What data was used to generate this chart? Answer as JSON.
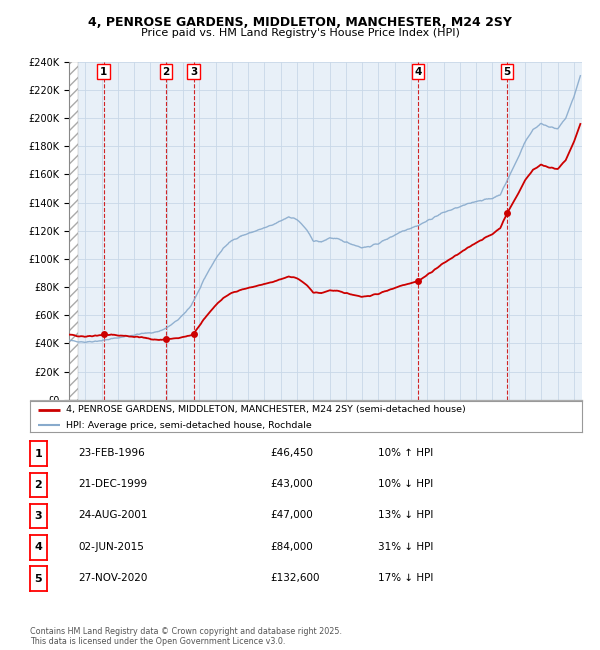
{
  "title_line1": "4, PENROSE GARDENS, MIDDLETON, MANCHESTER, M24 2SY",
  "title_line2": "Price paid vs. HM Land Registry's House Price Index (HPI)",
  "legend_property": "4, PENROSE GARDENS, MIDDLETON, MANCHESTER, M24 2SY (semi-detached house)",
  "legend_hpi": "HPI: Average price, semi-detached house, Rochdale",
  "transactions": [
    {
      "num": 1,
      "date": "23-FEB-1996",
      "year": 1996.13,
      "price": 46450
    },
    {
      "num": 2,
      "date": "21-DEC-1999",
      "year": 1999.97,
      "price": 43000
    },
    {
      "num": 3,
      "date": "24-AUG-2001",
      "year": 2001.65,
      "price": 47000
    },
    {
      "num": 4,
      "date": "02-JUN-2015",
      "year": 2015.42,
      "price": 84000
    },
    {
      "num": 5,
      "date": "27-NOV-2020",
      "year": 2020.91,
      "price": 132600
    }
  ],
  "table_rows": [
    [
      "1",
      "23-FEB-1996",
      "£46,450",
      "10% ↑ HPI"
    ],
    [
      "2",
      "21-DEC-1999",
      "£43,000",
      "10% ↓ HPI"
    ],
    [
      "3",
      "24-AUG-2001",
      "£47,000",
      "13% ↓ HPI"
    ],
    [
      "4",
      "02-JUN-2015",
      "£84,000",
      "31% ↓ HPI"
    ],
    [
      "5",
      "27-NOV-2020",
      "£132,600",
      "17% ↓ HPI"
    ]
  ],
  "footnote": "Contains HM Land Registry data © Crown copyright and database right 2025.\nThis data is licensed under the Open Government Licence v3.0.",
  "ylim": [
    0,
    240000
  ],
  "yticks": [
    0,
    20000,
    40000,
    60000,
    80000,
    100000,
    120000,
    140000,
    160000,
    180000,
    200000,
    220000,
    240000
  ],
  "background_color": "#ffffff",
  "grid_color": "#c8d8e8",
  "property_line_color": "#cc0000",
  "hpi_line_color": "#88aacc",
  "transaction_marker_color": "#cc0000",
  "vline_color": "#cc0000",
  "xmin": 1994.0,
  "xmax": 2025.5,
  "hpi_anchors": [
    [
      1994.0,
      42000
    ],
    [
      1994.5,
      41500
    ],
    [
      1995.0,
      41000
    ],
    [
      1995.5,
      41500
    ],
    [
      1996.0,
      42000
    ],
    [
      1996.5,
      43000
    ],
    [
      1997.0,
      44000
    ],
    [
      1997.5,
      45000
    ],
    [
      1998.0,
      46000
    ],
    [
      1998.5,
      47000
    ],
    [
      1999.0,
      47500
    ],
    [
      1999.5,
      48500
    ],
    [
      2000.0,
      51000
    ],
    [
      2000.5,
      55000
    ],
    [
      2001.0,
      60000
    ],
    [
      2001.5,
      67000
    ],
    [
      2002.0,
      78000
    ],
    [
      2002.5,
      90000
    ],
    [
      2003.0,
      100000
    ],
    [
      2003.5,
      108000
    ],
    [
      2004.0,
      113000
    ],
    [
      2004.5,
      116000
    ],
    [
      2005.0,
      118000
    ],
    [
      2005.5,
      120000
    ],
    [
      2006.0,
      122000
    ],
    [
      2006.5,
      124000
    ],
    [
      2007.0,
      127000
    ],
    [
      2007.5,
      130000
    ],
    [
      2008.0,
      128000
    ],
    [
      2008.5,
      122000
    ],
    [
      2009.0,
      113000
    ],
    [
      2009.5,
      112000
    ],
    [
      2010.0,
      115000
    ],
    [
      2010.5,
      114000
    ],
    [
      2011.0,
      112000
    ],
    [
      2011.5,
      110000
    ],
    [
      2012.0,
      108000
    ],
    [
      2012.5,
      109000
    ],
    [
      2013.0,
      111000
    ],
    [
      2013.5,
      114000
    ],
    [
      2014.0,
      117000
    ],
    [
      2014.5,
      120000
    ],
    [
      2015.0,
      122000
    ],
    [
      2015.5,
      124000
    ],
    [
      2016.0,
      127000
    ],
    [
      2016.5,
      130000
    ],
    [
      2017.0,
      133000
    ],
    [
      2017.5,
      135000
    ],
    [
      2018.0,
      137000
    ],
    [
      2018.5,
      139000
    ],
    [
      2019.0,
      141000
    ],
    [
      2019.5,
      142000
    ],
    [
      2020.0,
      143000
    ],
    [
      2020.5,
      146000
    ],
    [
      2021.0,
      158000
    ],
    [
      2021.5,
      170000
    ],
    [
      2022.0,
      183000
    ],
    [
      2022.5,
      192000
    ],
    [
      2023.0,
      196000
    ],
    [
      2023.5,
      194000
    ],
    [
      2024.0,
      192000
    ],
    [
      2024.5,
      200000
    ],
    [
      2025.0,
      215000
    ],
    [
      2025.4,
      230000
    ]
  ]
}
